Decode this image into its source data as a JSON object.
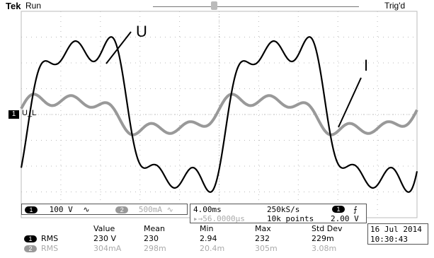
{
  "header": {
    "brand": "Tek",
    "run_status": "Run",
    "trigger_status": "Trig'd"
  },
  "channel": {
    "marker": "1",
    "ref_label": "U_L"
  },
  "annotations": {
    "voltage_label": "U",
    "current_label": "I"
  },
  "channel_panel": {
    "ch1": {
      "badge": "1",
      "scale": "100 V",
      "coupling_icon": "ac-coupling-icon"
    },
    "ch2": {
      "badge": "2",
      "scale": "500mA"
    }
  },
  "timebase_panel": {
    "time_div": "4.00ms",
    "sample_rate": "250kS/s",
    "trigger_badge": "1",
    "trigger_slope_icon": "rising-edge-icon",
    "position": "▸→56.0000µs",
    "record_length": "10k points",
    "trigger_level": "2.00 V"
  },
  "measurements": {
    "headers": [
      "Value",
      "Mean",
      "Min",
      "Max",
      "Std Dev"
    ],
    "rows": [
      {
        "badge": "1",
        "label": "RMS",
        "values": [
          "230 V",
          "230",
          "2.94",
          "232",
          "229m"
        ]
      },
      {
        "badge": "2",
        "label": "RMS",
        "values": [
          "304mA",
          "298m",
          "20.4m",
          "305m",
          "3.08m"
        ]
      }
    ]
  },
  "datetime": {
    "date": "16 Jul  2014",
    "time": "10:30:43"
  },
  "colors": {
    "grid": "#bbbbbb",
    "ch1": "#000000",
    "ch2": "#999999"
  }
}
